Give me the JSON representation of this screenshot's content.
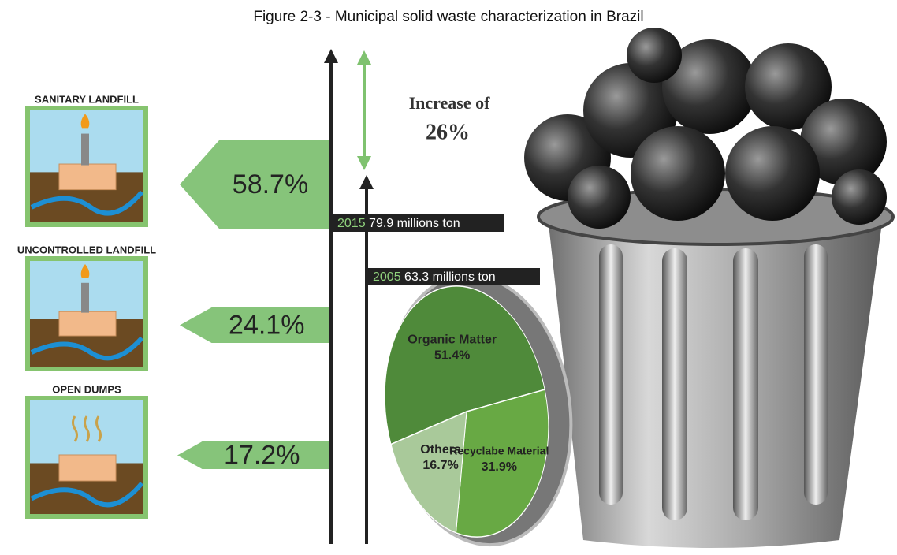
{
  "title": "Figure 2-3 - Municipal solid waste characterization in Brazil",
  "disposal": [
    {
      "label": "SANITARY LANDFILL",
      "share": "58.7%"
    },
    {
      "label": "UNCONTROLLED LANDFILL",
      "share": "24.1%"
    },
    {
      "label": "OPEN DUMPS",
      "share": "17.2%"
    }
  ],
  "increase": {
    "text": "Increase of",
    "amount": "26%"
  },
  "timeline": [
    {
      "year": "2015",
      "amount": "79.9 millions ton"
    },
    {
      "year": "2005",
      "amount": "63.3 millions ton"
    }
  ],
  "chart_data": {
    "type": "pie",
    "categories": [
      "Organic Matter",
      "Recyclabe Material",
      "Others"
    ],
    "values": [
      51.4,
      31.9,
      16.7
    ],
    "value_labels": [
      "51.4%",
      "31.9%",
      "16.7%"
    ],
    "colors": [
      "#4f8a3a",
      "#68a944",
      "#a9c99a"
    ]
  }
}
